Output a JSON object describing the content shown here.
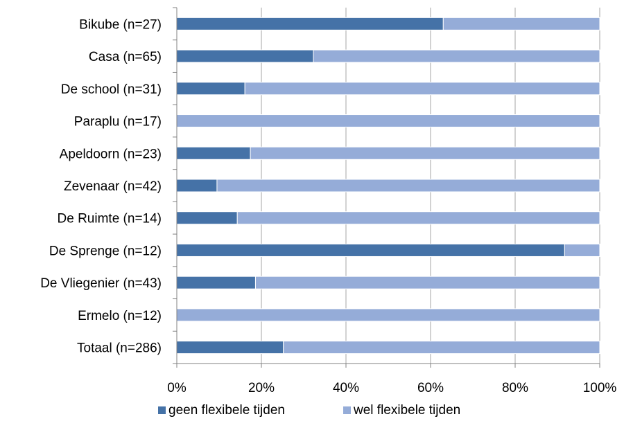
{
  "chart_data": {
    "type": "bar",
    "orientation": "horizontal",
    "stacked": "percent",
    "categories": [
      "Bikube (n=27)",
      "Casa (n=65)",
      "De school (n=31)",
      "Paraplu (n=17)",
      "Apeldoorn (n=23)",
      "Zevenaar (n=42)",
      "De Ruimte (n=14)",
      "De Sprenge (n=12)",
      "De Vliegenier (n=43)",
      "Ermelo (n=12)",
      "Totaal (n=286)"
    ],
    "series": [
      {
        "name": "geen flexibele tijden",
        "color": "#4572a7",
        "values": [
          63,
          32.3,
          16.1,
          0,
          17.4,
          9.5,
          14.3,
          91.7,
          18.6,
          0,
          25.2
        ]
      },
      {
        "name": "wel flexibele tijden",
        "color": "#95acd8",
        "values": [
          37,
          67.7,
          83.9,
          100,
          82.6,
          90.5,
          85.7,
          8.3,
          81.4,
          100,
          74.8
        ]
      }
    ],
    "xticks": [
      "0%",
      "20%",
      "40%",
      "60%",
      "80%",
      "100%"
    ],
    "xlim": [
      0,
      100
    ],
    "grid": true,
    "legend_position": "bottom"
  }
}
